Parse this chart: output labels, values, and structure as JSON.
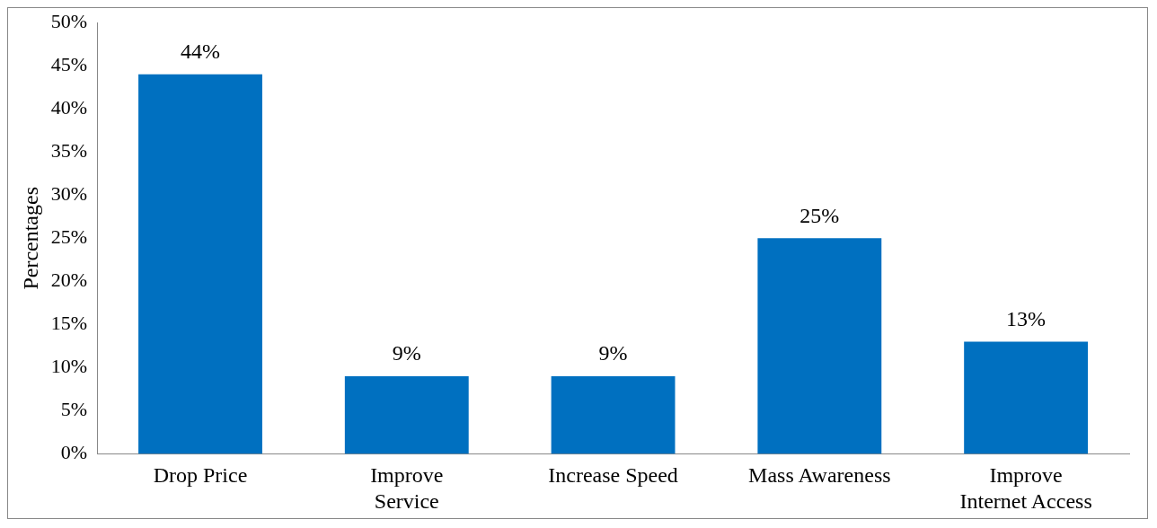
{
  "chart_data": {
    "type": "bar",
    "ylabel": "Percentages",
    "categories": [
      "Drop Price",
      "Improve Service",
      "Increase Speed",
      "Mass Awareness",
      "Improve Internet Access"
    ],
    "values": [
      44,
      9,
      9,
      25,
      13
    ],
    "color": "#0070c0",
    "value_labels": [
      "44%",
      "9%",
      "9%",
      "25%",
      "13%"
    ],
    "ylim": [
      0,
      50
    ],
    "yticks": [
      {
        "value": 0,
        "label": "0%"
      },
      {
        "value": 5,
        "label": "5%"
      },
      {
        "value": 10,
        "label": "10%"
      },
      {
        "value": 15,
        "label": "15%"
      },
      {
        "value": 20,
        "label": "20%"
      },
      {
        "value": 25,
        "label": "25%"
      },
      {
        "value": 30,
        "label": "30%"
      },
      {
        "value": 35,
        "label": "35%"
      },
      {
        "value": 40,
        "label": "40%"
      },
      {
        "value": 45,
        "label": "45%"
      },
      {
        "value": 50,
        "label": "50%"
      }
    ],
    "grid": false,
    "legend": false
  }
}
